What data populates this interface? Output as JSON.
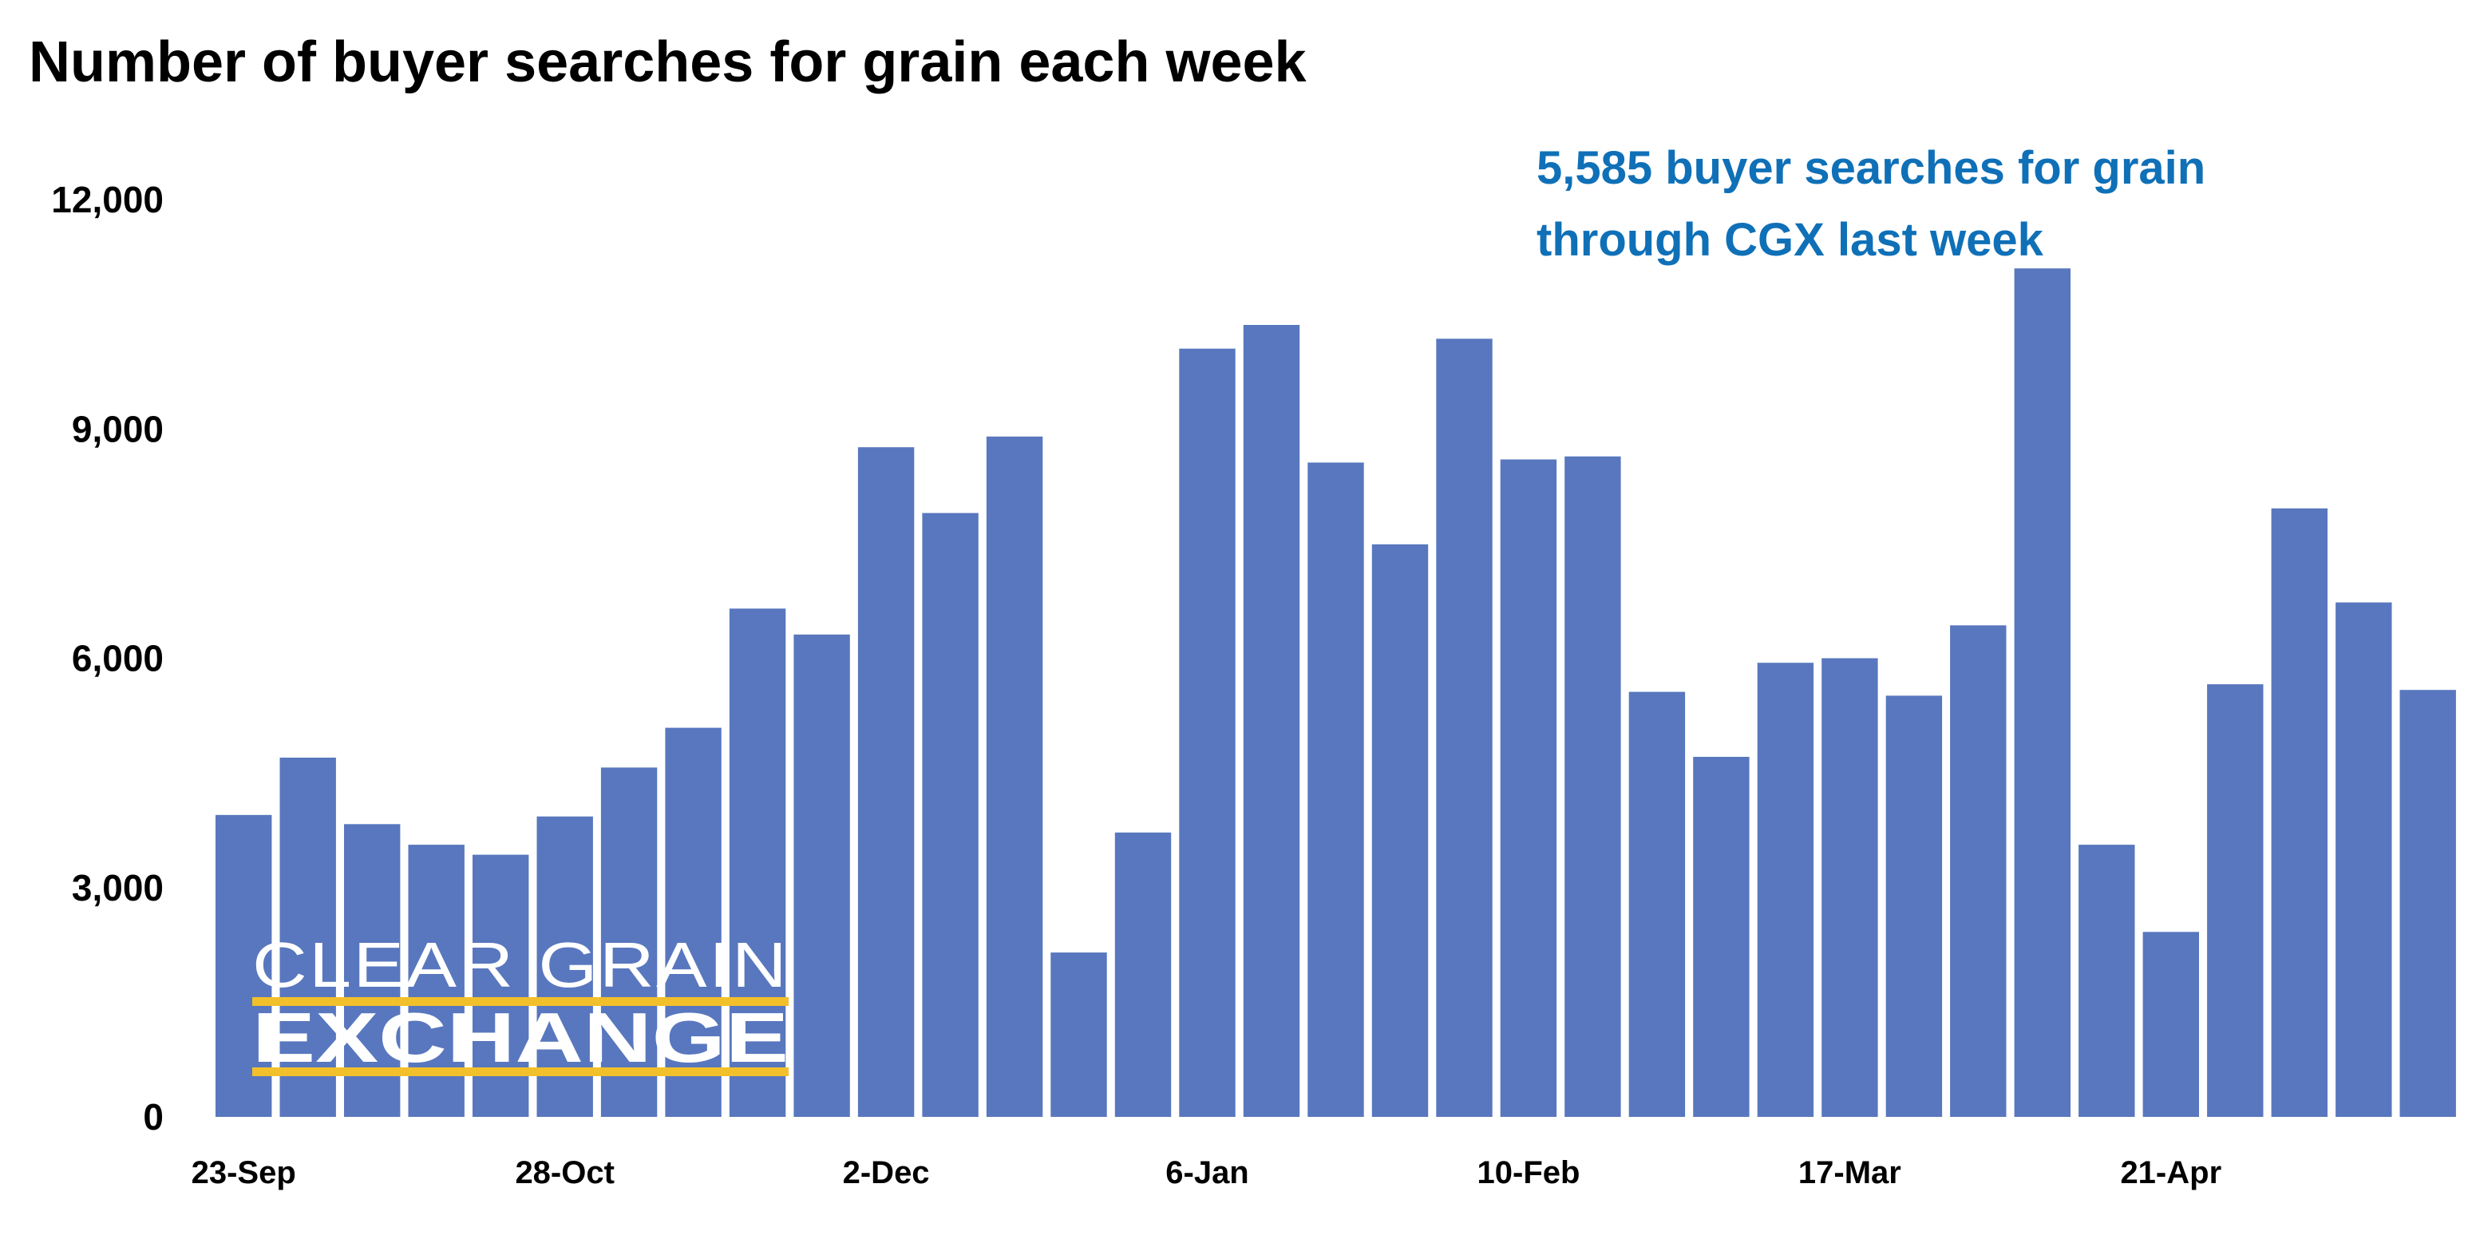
{
  "chart_data": {
    "type": "bar",
    "title": "Number of buyer searches for grain each week",
    "xlabel": "",
    "ylabel": "",
    "ylim": [
      0,
      12000
    ],
    "yticks": [
      0,
      3000,
      6000,
      9000,
      12000
    ],
    "ytick_labels": [
      "0",
      "3,000",
      "6,000",
      "9,000",
      "12,000"
    ],
    "grid": false,
    "bar_color": "#5877BE",
    "categories": [
      "23-Sep",
      "30-Sep",
      "7-Oct",
      "14-Oct",
      "21-Oct",
      "28-Oct",
      "4-Nov",
      "11-Nov",
      "18-Nov",
      "25-Nov",
      "2-Dec",
      "9-Dec",
      "16-Dec",
      "23-Dec",
      "30-Dec",
      "6-Jan",
      "13-Jan",
      "20-Jan",
      "27-Jan",
      "3-Feb",
      "10-Feb",
      "17-Feb",
      "24-Feb",
      "3-Mar",
      "10-Mar",
      "17-Mar",
      "24-Mar",
      "31-Mar",
      "7-Apr",
      "14-Apr",
      "21-Apr",
      "28-Apr",
      "5-May",
      "12-May",
      "19-May"
    ],
    "values": [
      3950,
      4700,
      3830,
      3560,
      3430,
      3930,
      4570,
      5090,
      6650,
      6310,
      8760,
      7900,
      8900,
      2150,
      3720,
      10050,
      10360,
      8560,
      7490,
      10180,
      8600,
      8640,
      5560,
      4710,
      5940,
      6000,
      5510,
      6430,
      11100,
      3560,
      2420,
      5660,
      7960,
      6730,
      5585
    ],
    "visible_tick_labels": [
      "23-Sep",
      "28-Oct",
      "2-Dec",
      "6-Jan",
      "10-Feb",
      "17-Mar",
      "21-Apr"
    ],
    "annotation": {
      "lines": [
        "5,585 buyer searches for grain",
        "through CGX last week"
      ],
      "color": "#0F70B7"
    }
  },
  "logo": {
    "line1": "CLEAR GRAIN",
    "line2": "EXCHANGE",
    "text_color": "#FFFFFF",
    "stripe_color": "#F2C02B"
  }
}
